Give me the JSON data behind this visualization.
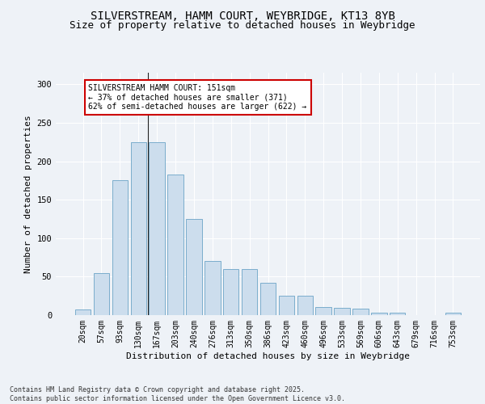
{
  "title_line1": "SILVERSTREAM, HAMM COURT, WEYBRIDGE, KT13 8YB",
  "title_line2": "Size of property relative to detached houses in Weybridge",
  "xlabel": "Distribution of detached houses by size in Weybridge",
  "ylabel": "Number of detached properties",
  "categories": [
    "20sqm",
    "57sqm",
    "93sqm",
    "130sqm",
    "167sqm",
    "203sqm",
    "240sqm",
    "276sqm",
    "313sqm",
    "350sqm",
    "386sqm",
    "423sqm",
    "460sqm",
    "496sqm",
    "533sqm",
    "569sqm",
    "606sqm",
    "643sqm",
    "679sqm",
    "716sqm",
    "753sqm"
  ],
  "values": [
    7,
    55,
    175,
    225,
    225,
    183,
    125,
    70,
    60,
    60,
    42,
    25,
    25,
    10,
    9,
    8,
    3,
    3,
    0,
    0,
    3
  ],
  "bar_color": "#ccdded",
  "bar_edge_color": "#7aadcc",
  "background_color": "#eef2f7",
  "grid_color": "#ffffff",
  "annotation_box_text": "SILVERSTREAM HAMM COURT: 151sqm\n← 37% of detached houses are smaller (371)\n62% of semi-detached houses are larger (622) →",
  "annotation_box_color": "#cc0000",
  "marker_bar_index": 3.5,
  "ylim": [
    0,
    315
  ],
  "yticks": [
    0,
    50,
    100,
    150,
    200,
    250,
    300
  ],
  "footnote": "Contains HM Land Registry data © Crown copyright and database right 2025.\nContains public sector information licensed under the Open Government Licence v3.0.",
  "title_fontsize": 10,
  "subtitle_fontsize": 9,
  "axis_label_fontsize": 8,
  "tick_fontsize": 7,
  "annotation_fontsize": 7,
  "footnote_fontsize": 6
}
